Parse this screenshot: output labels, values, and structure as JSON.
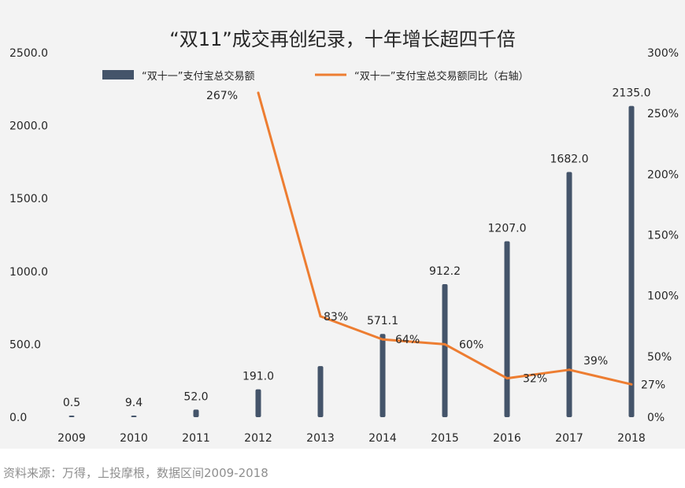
{
  "chart_data": {
    "type": "bar",
    "title": "“双11”成交再创纪录，十年增长超四千倍",
    "categories": [
      "2009",
      "2010",
      "2011",
      "2012",
      "2013",
      "2014",
      "2015",
      "2016",
      "2017",
      "2018"
    ],
    "series": [
      {
        "name": "“双十一”支付宝总交易额",
        "type": "bar",
        "axis": "left",
        "color": "#44546a",
        "values": [
          0.5,
          9.4,
          52.0,
          191.0,
          350.0,
          571.1,
          912.2,
          1207.0,
          1682.0,
          2135.0
        ],
        "labels": [
          "0.5",
          "9.4",
          "52.0",
          "191.0",
          "",
          "571.1",
          "912.2",
          "1207.0",
          "1682.0",
          "2135.0"
        ]
      },
      {
        "name": "“双十一”支付宝总交易额同比（右轴）",
        "type": "line",
        "axis": "right",
        "color": "#ed7d31",
        "x": [
          "2012",
          "2013",
          "2014",
          "2015",
          "2016",
          "2017",
          "2018"
        ],
        "values": [
          267,
          83,
          64,
          60,
          32,
          39,
          27
        ],
        "labels": [
          "267%",
          "83%",
          "64%",
          "60%",
          "32%",
          "39%",
          "27%"
        ]
      }
    ],
    "y_left": {
      "ylim": [
        0,
        2500
      ],
      "ticks": [
        "0.0",
        "500.0",
        "1000.0",
        "1500.0",
        "2000.0",
        "2500.0"
      ]
    },
    "y_right": {
      "ylim": [
        0,
        300
      ],
      "ticks": [
        "0%",
        "50%",
        "100%",
        "150%",
        "200%",
        "250%",
        "300%"
      ]
    },
    "legend_position": "top",
    "grid": false
  },
  "source_note": "资料来源：万得，上投摩根，数据区间2009-2018"
}
